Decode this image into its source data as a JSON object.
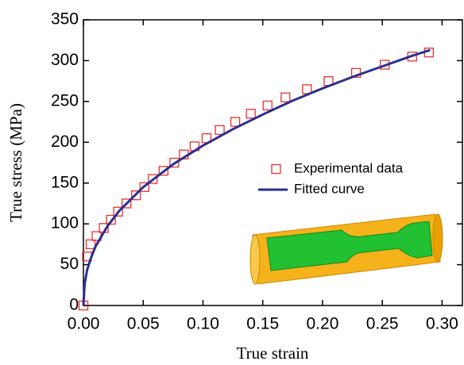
{
  "chart_data": {
    "type": "scatter",
    "x_label": "True strain",
    "y_label": "True stress (MPa)",
    "xlim": [
      0,
      0.317
    ],
    "ylim": [
      0,
      350
    ],
    "xticks": [
      {
        "value": 0,
        "label": "0.00"
      },
      {
        "value": 0.05,
        "label": "0.05"
      },
      {
        "value": 0.1,
        "label": "0.10"
      },
      {
        "value": 0.15,
        "label": "0.15"
      },
      {
        "value": 0.2,
        "label": "0.20"
      },
      {
        "value": 0.25,
        "label": "0.25"
      },
      {
        "value": 0.3,
        "label": "0.30"
      }
    ],
    "yticks": [
      0,
      50,
      100,
      150,
      200,
      250,
      300,
      350
    ],
    "series": [
      {
        "name": "Experimental data",
        "mode": "markers",
        "color": "#e8312f",
        "x": [
          0,
          0.003,
          0.006,
          0.011,
          0.017,
          0.023,
          0.029,
          0.036,
          0.044,
          0.051,
          0.058,
          0.067,
          0.076,
          0.084,
          0.093,
          0.103,
          0.114,
          0.127,
          0.14,
          0.154,
          0.169,
          0.187,
          0.205,
          0.228,
          0.252,
          0.275,
          0.289
        ],
        "values": [
          0,
          60,
          75,
          85,
          95,
          105,
          115,
          125,
          135,
          145,
          155,
          165,
          175,
          185,
          195,
          205,
          215,
          225,
          235,
          245,
          255,
          265,
          275,
          285,
          295,
          305,
          310
        ]
      },
      {
        "name": "Fitted curve",
        "mode": "line",
        "color": "#2b2f8f",
        "x": [
          0,
          0.001,
          0.003,
          0.006,
          0.01,
          0.02,
          0.03,
          0.05,
          0.075,
          0.1,
          0.125,
          0.15,
          0.175,
          0.2,
          0.225,
          0.25,
          0.275,
          0.29
        ],
        "values": [
          0,
          26,
          43,
          57,
          72,
          97,
          116,
          145,
          173,
          196,
          216,
          234,
          251,
          266,
          280,
          293,
          306,
          313
        ]
      }
    ]
  }
}
